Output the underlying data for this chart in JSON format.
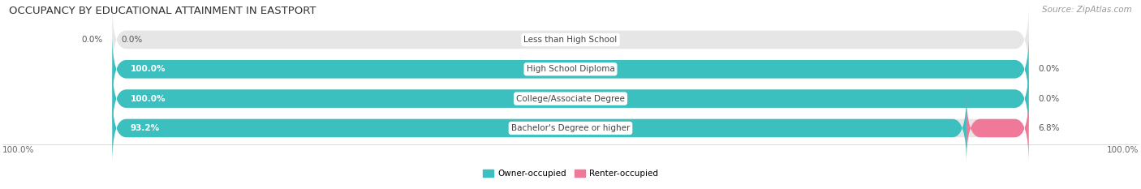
{
  "title": "OCCUPANCY BY EDUCATIONAL ATTAINMENT IN EASTPORT",
  "source": "Source: ZipAtlas.com",
  "categories": [
    "Less than High School",
    "High School Diploma",
    "College/Associate Degree",
    "Bachelor's Degree or higher"
  ],
  "owner_values": [
    0.0,
    100.0,
    100.0,
    93.2
  ],
  "renter_values": [
    0.0,
    0.0,
    0.0,
    6.8
  ],
  "owner_color": "#3bbfbf",
  "renter_color": "#f07898",
  "bar_bg_color": "#e6e6e6",
  "owner_label": "Owner-occupied",
  "renter_label": "Renter-occupied",
  "bar_height": 0.62,
  "figsize": [
    14.06,
    2.33
  ],
  "dpi": 100,
  "axis_label_left": "100.0%",
  "axis_label_right": "100.0%",
  "title_fontsize": 9.5,
  "label_fontsize": 7.5,
  "value_fontsize": 7.5,
  "tick_fontsize": 7.5,
  "legend_fontsize": 7.5,
  "source_fontsize": 7.5,
  "owner_text_color": "#ffffff",
  "renter_text_color": "#555555",
  "cat_text_color": "#444444"
}
